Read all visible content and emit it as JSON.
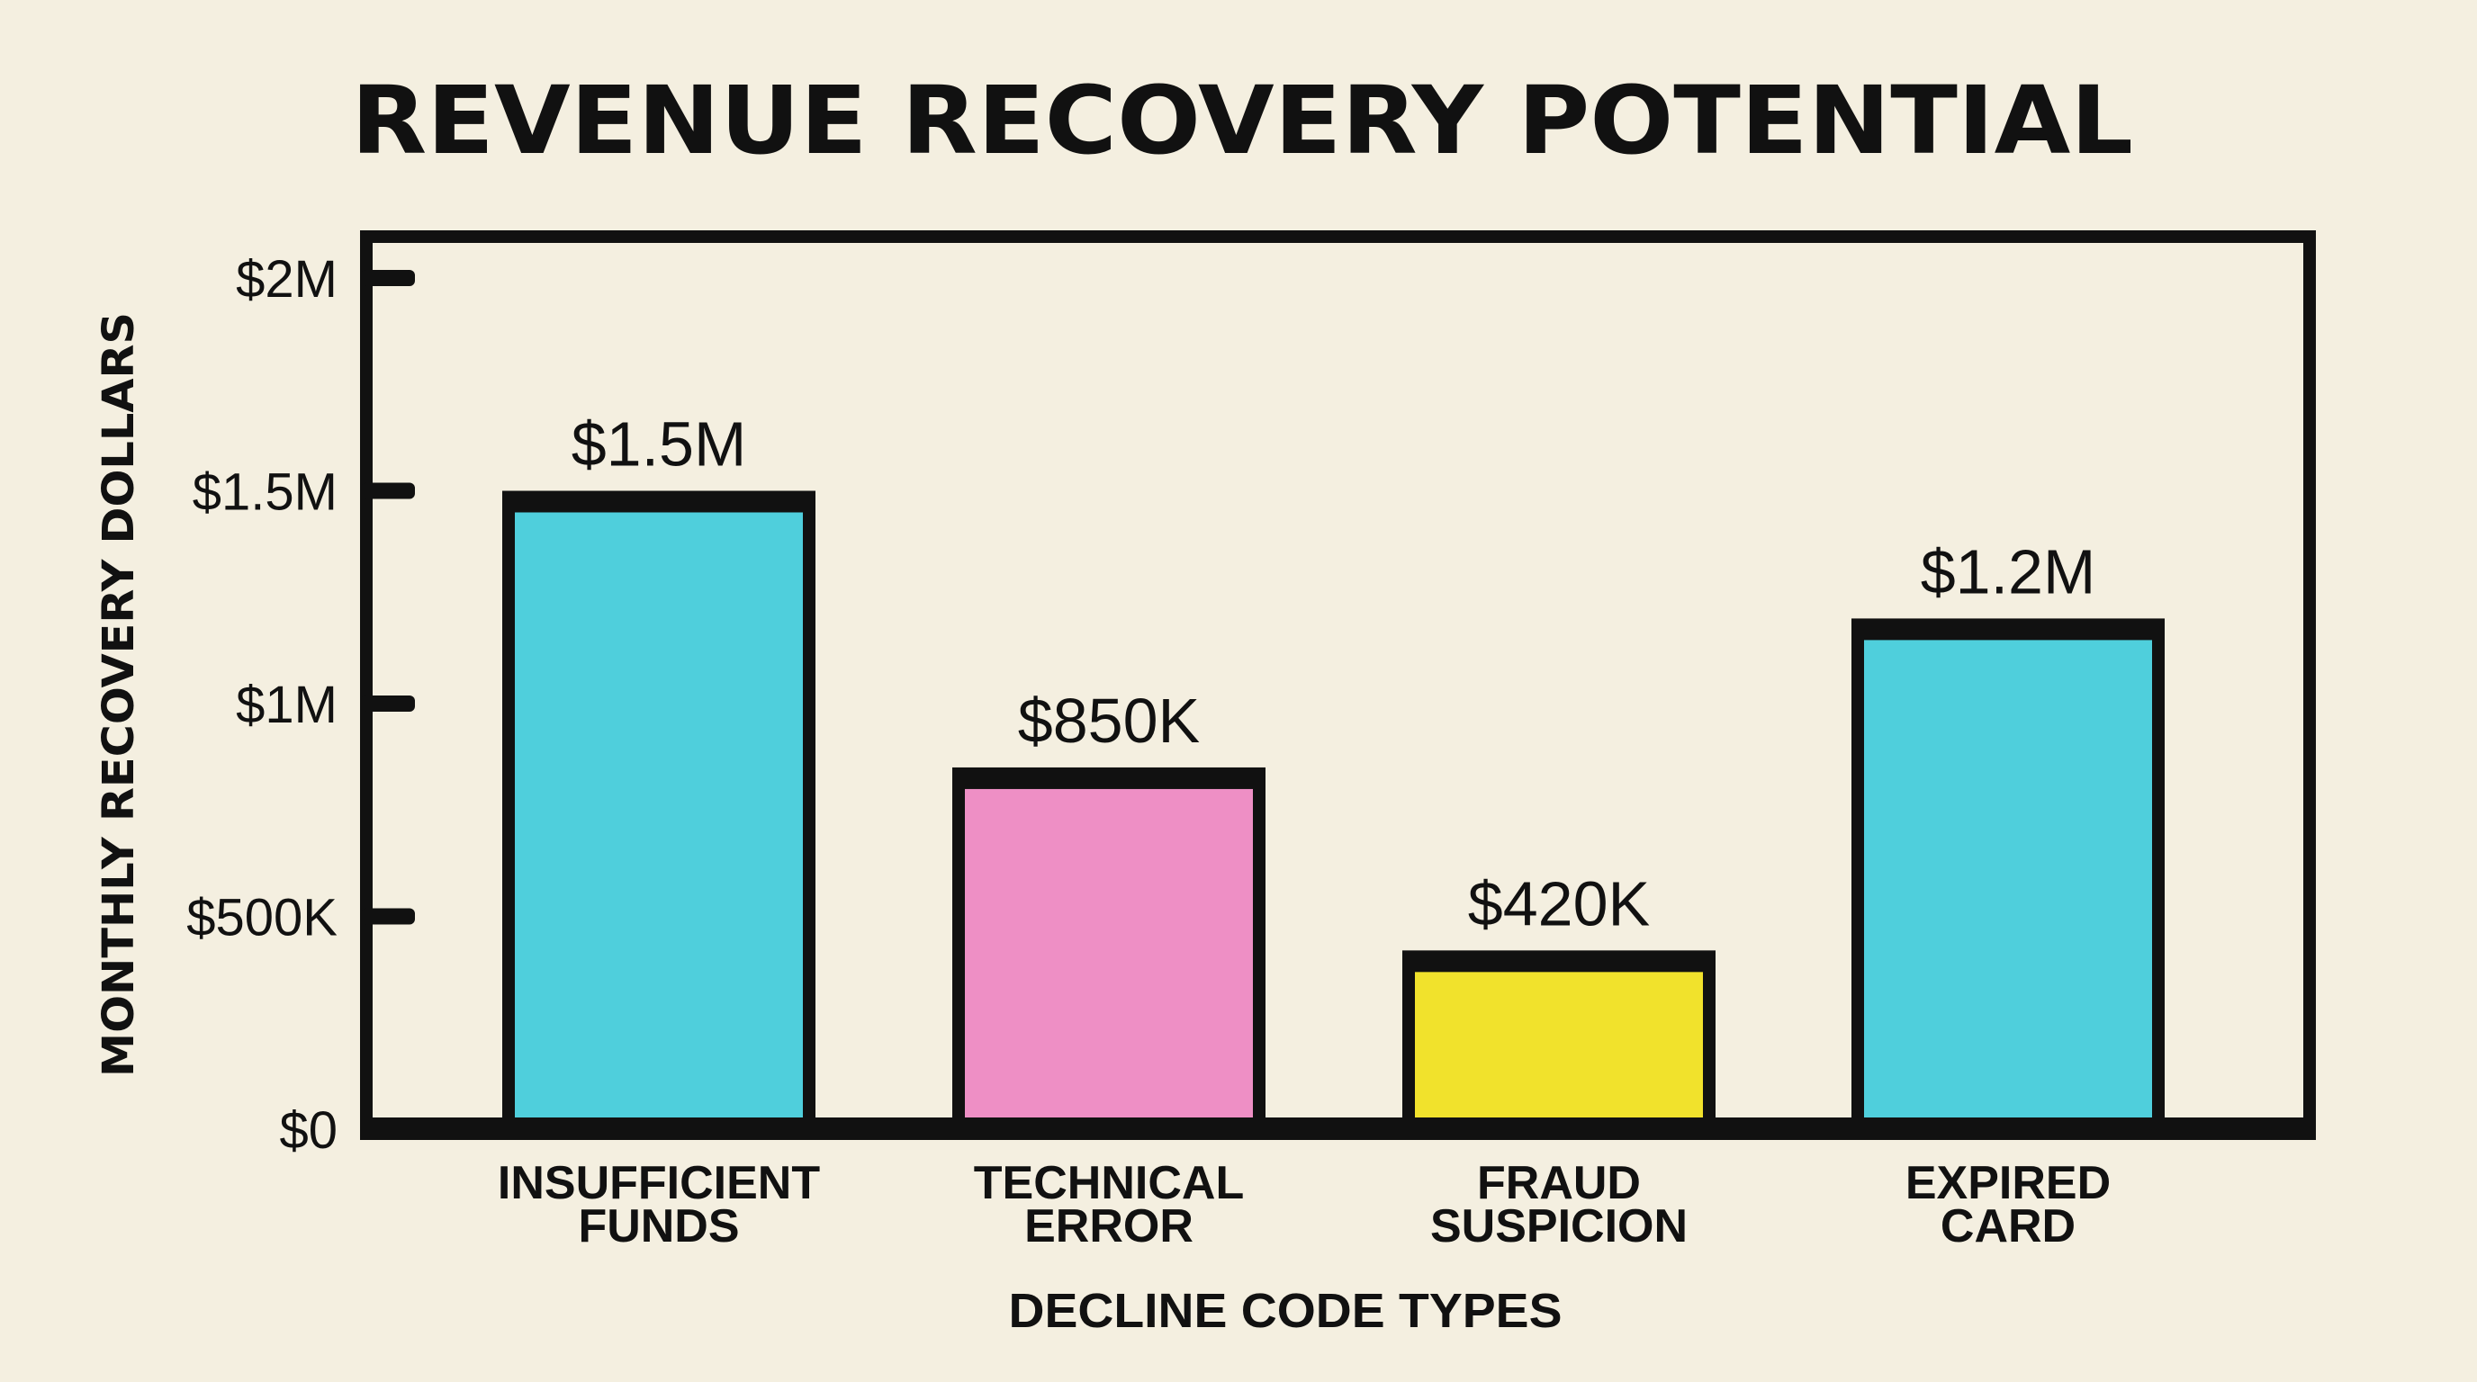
{
  "chart_data": {
    "type": "bar",
    "title": "REVENUE RECOVERY POTENTIAL",
    "xlabel": "DECLINE CODE TYPES",
    "ylabel": "MONTHLY RECOVERY DOLLARS",
    "ylim": [
      0,
      2000000
    ],
    "yticks": [
      0,
      500000,
      1000000,
      1500000,
      2000000
    ],
    "ytick_labels": [
      "$0",
      "$500K",
      "$1M",
      "$1.5M",
      "$2M"
    ],
    "grid": false,
    "categories": [
      [
        "INSUFFICIENT",
        "FUNDS"
      ],
      [
        "TECHNICAL",
        "ERROR"
      ],
      [
        "FRAUD",
        "SUSPICION"
      ],
      [
        "EXPIRED",
        "CARD"
      ]
    ],
    "values": [
      1500000,
      850000,
      420000,
      1200000
    ],
    "data_labels": [
      "$1.5M",
      "$850K",
      "$420K",
      "$1.2M"
    ],
    "colors": [
      "#4fcfdc",
      "#ee8fc5",
      "#f1e22c",
      "#4fcfdc"
    ],
    "outline_color": "#111111",
    "background": "#f4efe0"
  }
}
